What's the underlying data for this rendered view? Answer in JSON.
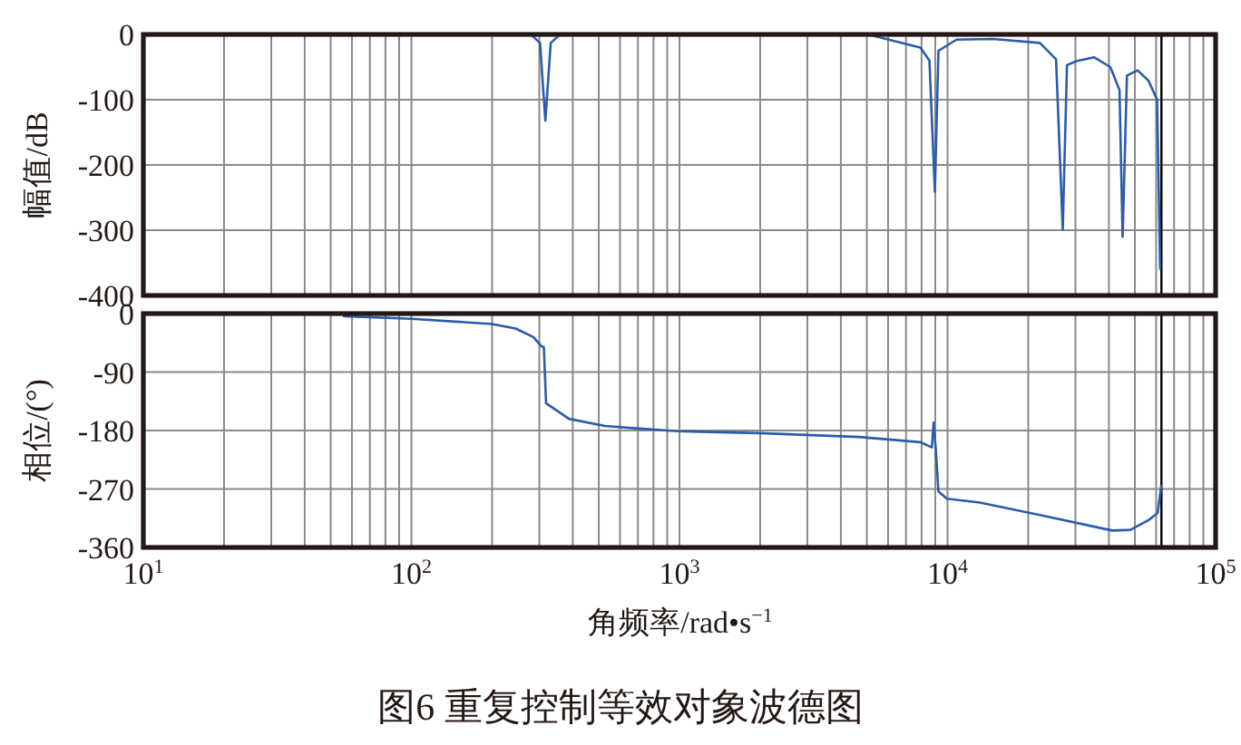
{
  "chart_data": [
    {
      "type": "line",
      "ylabel": "幅值/dB",
      "log": "x",
      "grid": true,
      "tick_labels": "y",
      "xlim": [
        10,
        100000
      ],
      "xticks": [
        10,
        20,
        30,
        40,
        50,
        60,
        70,
        80,
        90,
        100,
        200,
        300,
        400,
        500,
        600,
        700,
        800,
        900,
        1000,
        2000,
        3000,
        4000,
        5000,
        6000,
        7000,
        8000,
        9000,
        10000,
        20000,
        30000,
        40000,
        50000,
        60000,
        70000,
        80000,
        90000,
        100000
      ],
      "ylim": [
        -400,
        0
      ],
      "yticks": [
        {
          "value": -400,
          "label": "-400"
        },
        {
          "value": -300,
          "label": "-300"
        },
        {
          "value": -200,
          "label": "-200"
        },
        {
          "value": -100,
          "label": "-100"
        },
        0
      ],
      "ref_lines": [
        {
          "axis": "x",
          "value": 62800,
          "color": "#000000"
        }
      ],
      "series": [
        {
          "color": "#2a5caa",
          "x": [
            284,
            302,
            316,
            331,
            352,
            399,
            5050,
            7920,
            8560,
            8970,
            9250,
            10800,
            14800,
            22100,
            25400,
            26900,
            27900,
            30200,
            35200,
            40500,
            43800,
            45000,
            46700,
            51200,
            56200,
            60500,
            62100
          ],
          "values": [
            -3,
            -13,
            -132,
            -13,
            -3,
            null,
            0,
            -20,
            -40,
            -241,
            -25,
            -8,
            -7,
            -13,
            -38,
            -299,
            -47,
            -41,
            -35,
            -50,
            -85,
            -310,
            -63,
            -55,
            -71,
            -100,
            -359
          ]
        }
      ]
    },
    {
      "type": "line",
      "ylabel": "相位/(°)",
      "xlabel": "角频率/rad•s$^{−1}$",
      "log": "x",
      "grid": true,
      "annotations": [
        "图6  重复控制等效对象波德图"
      ],
      "xlim": [
        10,
        100000
      ],
      "xticks": [
        {
          "value": 10,
          "label": "10$^{1}$"
        },
        {
          "value": 20,
          "label": null
        },
        {
          "value": 30,
          "label": null
        },
        {
          "value": 40,
          "label": null
        },
        {
          "value": 50,
          "label": null
        },
        {
          "value": 60,
          "label": null
        },
        {
          "value": 70,
          "label": null
        },
        {
          "value": 80,
          "label": null
        },
        {
          "value": 90,
          "label": null
        },
        {
          "value": 100,
          "label": "10$^{2}$"
        },
        {
          "value": 200,
          "label": null
        },
        {
          "value": 300,
          "label": null
        },
        {
          "value": 400,
          "label": null
        },
        {
          "value": 500,
          "label": null
        },
        {
          "value": 600,
          "label": null
        },
        {
          "value": 700,
          "label": null
        },
        {
          "value": 800,
          "label": null
        },
        {
          "value": 900,
          "label": null
        },
        {
          "value": 1000,
          "label": "10$^{3}$"
        },
        {
          "value": 2000,
          "label": null
        },
        {
          "value": 3000,
          "label": null
        },
        {
          "value": 4000,
          "label": null
        },
        {
          "value": 5000,
          "label": null
        },
        {
          "value": 6000,
          "label": null
        },
        {
          "value": 7000,
          "label": null
        },
        {
          "value": 8000,
          "label": null
        },
        {
          "value": 9000,
          "label": null
        },
        {
          "value": 10000,
          "label": "10$^{4}$"
        },
        {
          "value": 20000,
          "label": null
        },
        {
          "value": 30000,
          "label": null
        },
        {
          "value": 40000,
          "label": null
        },
        {
          "value": 50000,
          "label": null
        },
        {
          "value": 60000,
          "label": null
        },
        {
          "value": 70000,
          "label": null
        },
        {
          "value": 80000,
          "label": null
        },
        {
          "value": 90000,
          "label": null
        },
        {
          "value": 100000,
          "label": "10$^{5}$"
        }
      ],
      "ylim": [
        -360,
        0
      ],
      "yticks": [
        {
          "value": -360,
          "label": "-360"
        },
        {
          "value": -270,
          "label": "-270"
        },
        {
          "value": -180,
          "label": "-180"
        },
        {
          "value": -90,
          "label": "-90"
        },
        0
      ],
      "ref_lines": [
        {
          "axis": "x",
          "value": 62800,
          "color": "#000000"
        }
      ],
      "series": [
        {
          "color": "#2a5caa",
          "x": [
            56,
            100,
            200,
            245,
            285,
            305,
            312,
            318,
            387,
            528,
            654,
            985,
            1980,
            4670,
            7920,
            8740,
            8870,
            9030,
            9250,
            9950,
            13200,
            22100,
            41200,
            48100,
            56200,
            60800,
            62700
          ],
          "values": [
            -4,
            -8,
            -16,
            -23,
            -36,
            -50,
            -52,
            -138,
            -162,
            -173,
            -176,
            -181,
            -184,
            -190,
            -198,
            -206,
            -168,
            -206,
            -274,
            -285,
            -291,
            -310,
            -334,
            -333,
            -318,
            -307,
            -265
          ]
        }
      ]
    }
  ]
}
